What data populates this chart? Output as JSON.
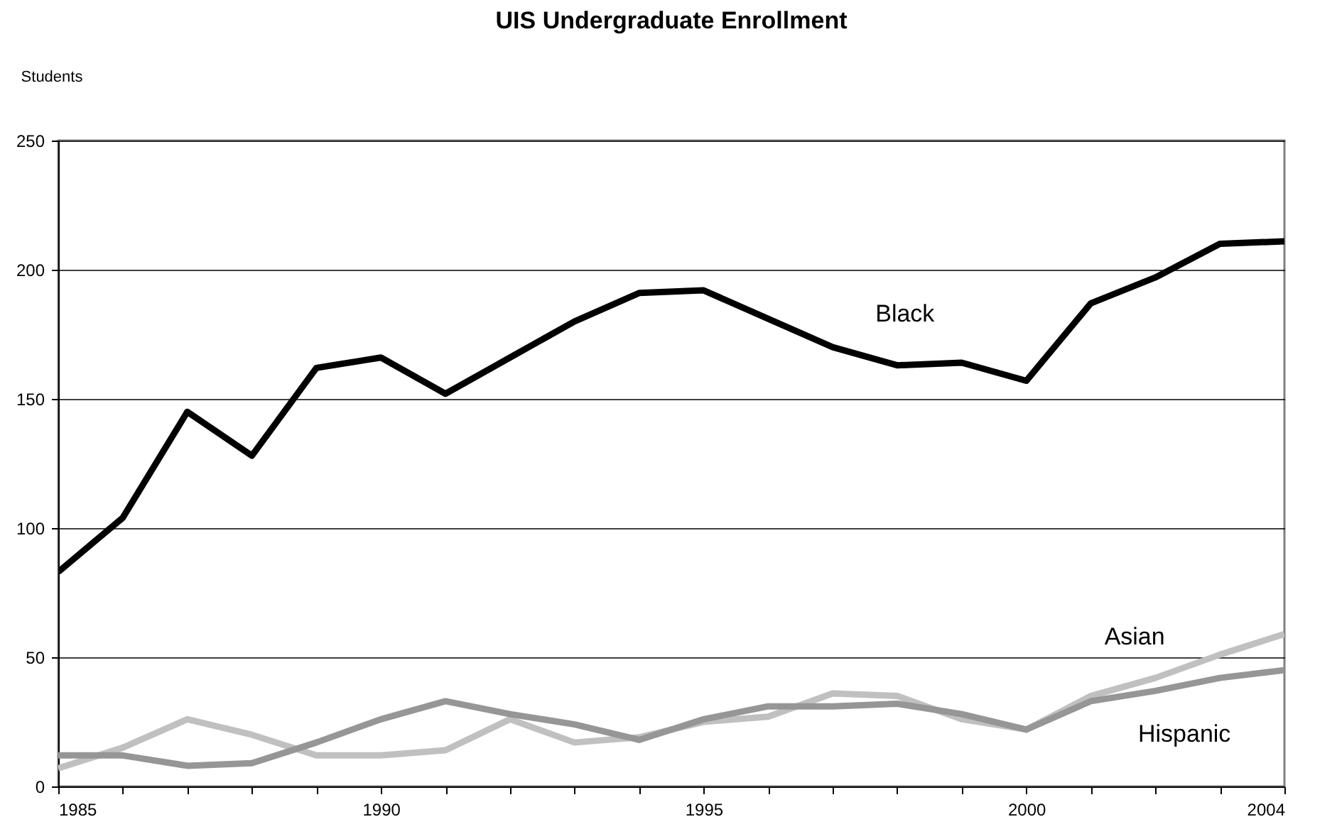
{
  "chart_data": {
    "type": "line",
    "title": "UIS Undergraduate Enrollment",
    "ylabel": "Students",
    "x": [
      1985,
      1986,
      1987,
      1988,
      1989,
      1990,
      1991,
      1992,
      1993,
      1994,
      1995,
      1996,
      1997,
      1998,
      1999,
      2000,
      2001,
      2002,
      2003,
      2004
    ],
    "series": [
      {
        "name": "Black",
        "color": "#000000",
        "values": [
          83,
          104,
          145,
          128,
          162,
          166,
          152,
          166,
          180,
          191,
          192,
          181,
          170,
          163,
          164,
          157,
          187,
          197,
          210,
          211
        ]
      },
      {
        "name": "Asian",
        "color": "#c0c0c0",
        "values": [
          7,
          15,
          26,
          20,
          12,
          12,
          14,
          26,
          17,
          19,
          25,
          27,
          36,
          35,
          26,
          22,
          35,
          42,
          51,
          59
        ]
      },
      {
        "name": "Hispanic",
        "color": "#969696",
        "values": [
          12,
          12,
          8,
          9,
          17,
          26,
          33,
          28,
          24,
          18,
          26,
          31,
          31,
          32,
          28,
          22,
          33,
          37,
          42,
          45
        ]
      }
    ],
    "xlim": [
      1985,
      2004
    ],
    "xticks": [
      1985,
      {
        "value": 1986,
        "label": null
      },
      {
        "value": 1987,
        "label": null
      },
      {
        "value": 1988,
        "label": null
      },
      {
        "value": 1989,
        "label": null
      },
      1990,
      {
        "value": 1991,
        "label": null
      },
      {
        "value": 1992,
        "label": null
      },
      {
        "value": 1993,
        "label": null
      },
      {
        "value": 1994,
        "label": null
      },
      1995,
      {
        "value": 1996,
        "label": null
      },
      {
        "value": 1997,
        "label": null
      },
      {
        "value": 1998,
        "label": null
      },
      {
        "value": 1999,
        "label": null
      },
      2000,
      {
        "value": 2001,
        "label": null
      },
      {
        "value": 2002,
        "label": null
      },
      {
        "value": 2003,
        "label": null
      },
      2004
    ],
    "ylim": [
      0,
      250
    ],
    "yticks": [
      0,
      50,
      100,
      150,
      200,
      250
    ],
    "grid": "y",
    "legend": false,
    "marker": "none",
    "line_style": "solid"
  }
}
